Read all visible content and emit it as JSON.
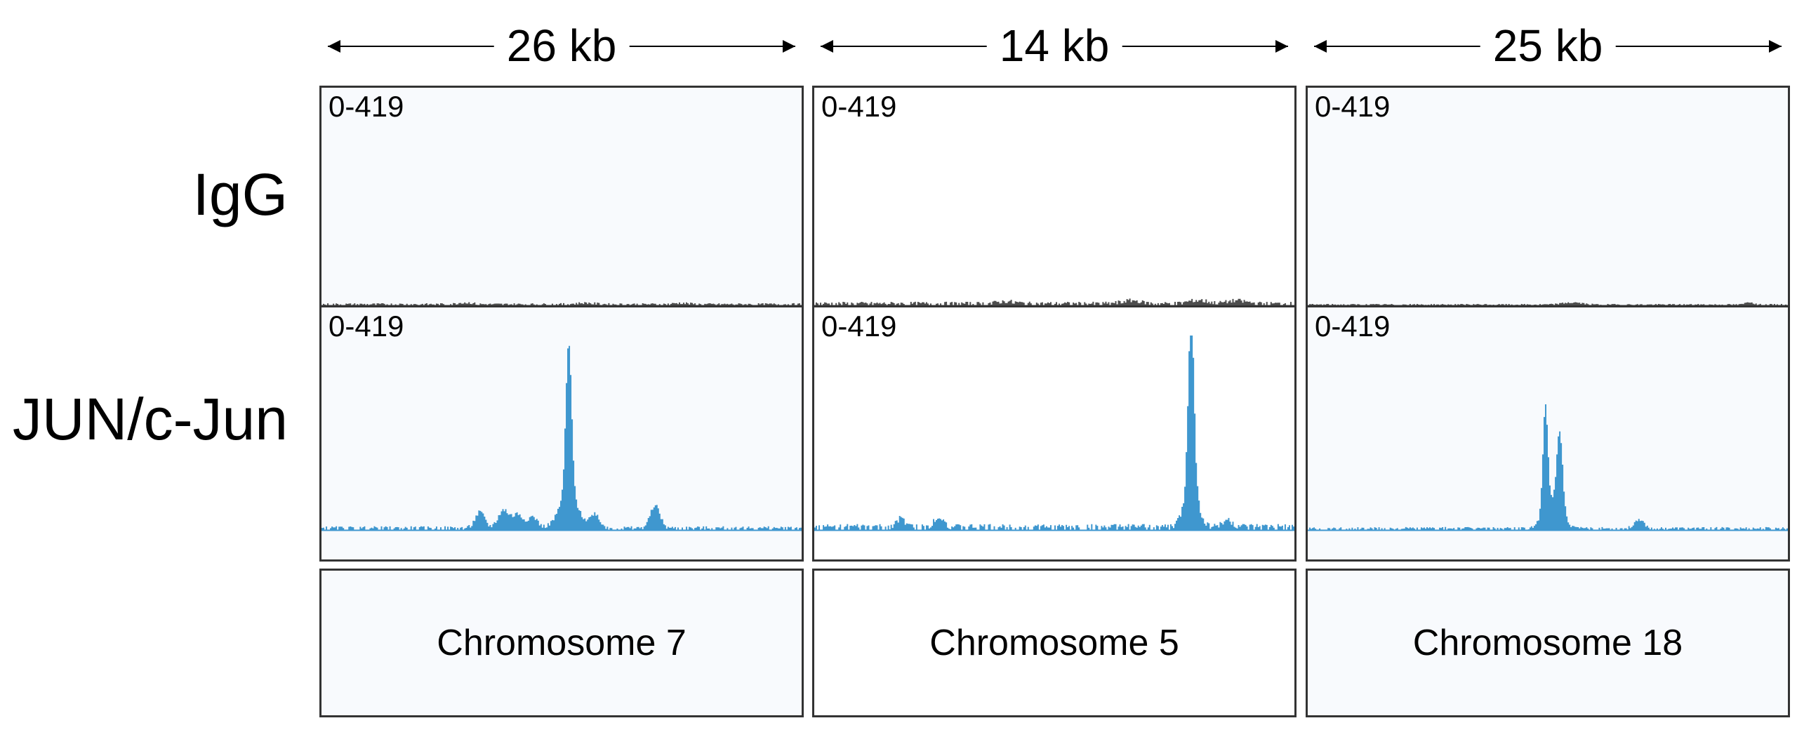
{
  "figure": {
    "rows": [
      {
        "label": "IgG",
        "color": "#4d4d4d"
      },
      {
        "label": "JUN/c-Jun",
        "color": "#3f97cf"
      }
    ],
    "columns": [
      {
        "scale": "26 kb",
        "chromosome": "Chromosome 7"
      },
      {
        "scale": "14 kb",
        "chromosome": "Chromosome 5"
      },
      {
        "scale": "25 kb",
        "chromosome": "Chromosome 18"
      }
    ],
    "track_range": "0-419"
  },
  "chart_data": [
    {
      "type": "area",
      "region": "Chromosome 7",
      "scale": "26 kb",
      "ylim": [
        0,
        419
      ],
      "series": [
        {
          "name": "IgG",
          "peaks": [
            [
              0.3,
              0.015,
              4
            ],
            [
              0.55,
              0.02,
              3
            ],
            [
              0.75,
              0.015,
              3
            ]
          ],
          "baseline": 3
        },
        {
          "name": "JUN/c-Jun",
          "peaks": [
            [
              0.515,
              0.006,
              330
            ],
            [
              0.515,
              0.02,
              70
            ],
            [
              0.33,
              0.01,
              35
            ],
            [
              0.38,
              0.012,
              40
            ],
            [
              0.41,
              0.01,
              30
            ],
            [
              0.44,
              0.01,
              25
            ],
            [
              0.57,
              0.01,
              30
            ],
            [
              0.695,
              0.01,
              50
            ]
          ],
          "baseline": 5
        }
      ]
    },
    {
      "type": "area",
      "region": "Chromosome 5",
      "scale": "14 kb",
      "ylim": [
        0,
        419
      ],
      "series": [
        {
          "name": "IgG",
          "peaks": [
            [
              0.4,
              0.02,
              5
            ],
            [
              0.66,
              0.02,
              7
            ],
            [
              0.8,
              0.02,
              8
            ],
            [
              0.88,
              0.02,
              7
            ]
          ],
          "baseline": 5
        },
        {
          "name": "JUN/c-Jun",
          "peaks": [
            [
              0.785,
              0.006,
              390
            ],
            [
              0.785,
              0.015,
              80
            ],
            [
              0.18,
              0.01,
              18
            ],
            [
              0.26,
              0.01,
              25
            ],
            [
              0.86,
              0.012,
              15
            ]
          ],
          "baseline": 8
        }
      ]
    },
    {
      "type": "area",
      "region": "Chromosome 18",
      "scale": "25 kb",
      "ylim": [
        0,
        419
      ],
      "series": [
        {
          "name": "IgG",
          "peaks": [
            [
              0.55,
              0.02,
              5
            ],
            [
              0.92,
              0.008,
              6
            ]
          ],
          "baseline": 2
        },
        {
          "name": "JUN/c-Jun",
          "peaks": [
            [
              0.495,
              0.005,
              225
            ],
            [
              0.525,
              0.006,
              170
            ],
            [
              0.51,
              0.018,
              60
            ],
            [
              0.69,
              0.01,
              20
            ]
          ],
          "baseline": 4
        }
      ]
    }
  ]
}
